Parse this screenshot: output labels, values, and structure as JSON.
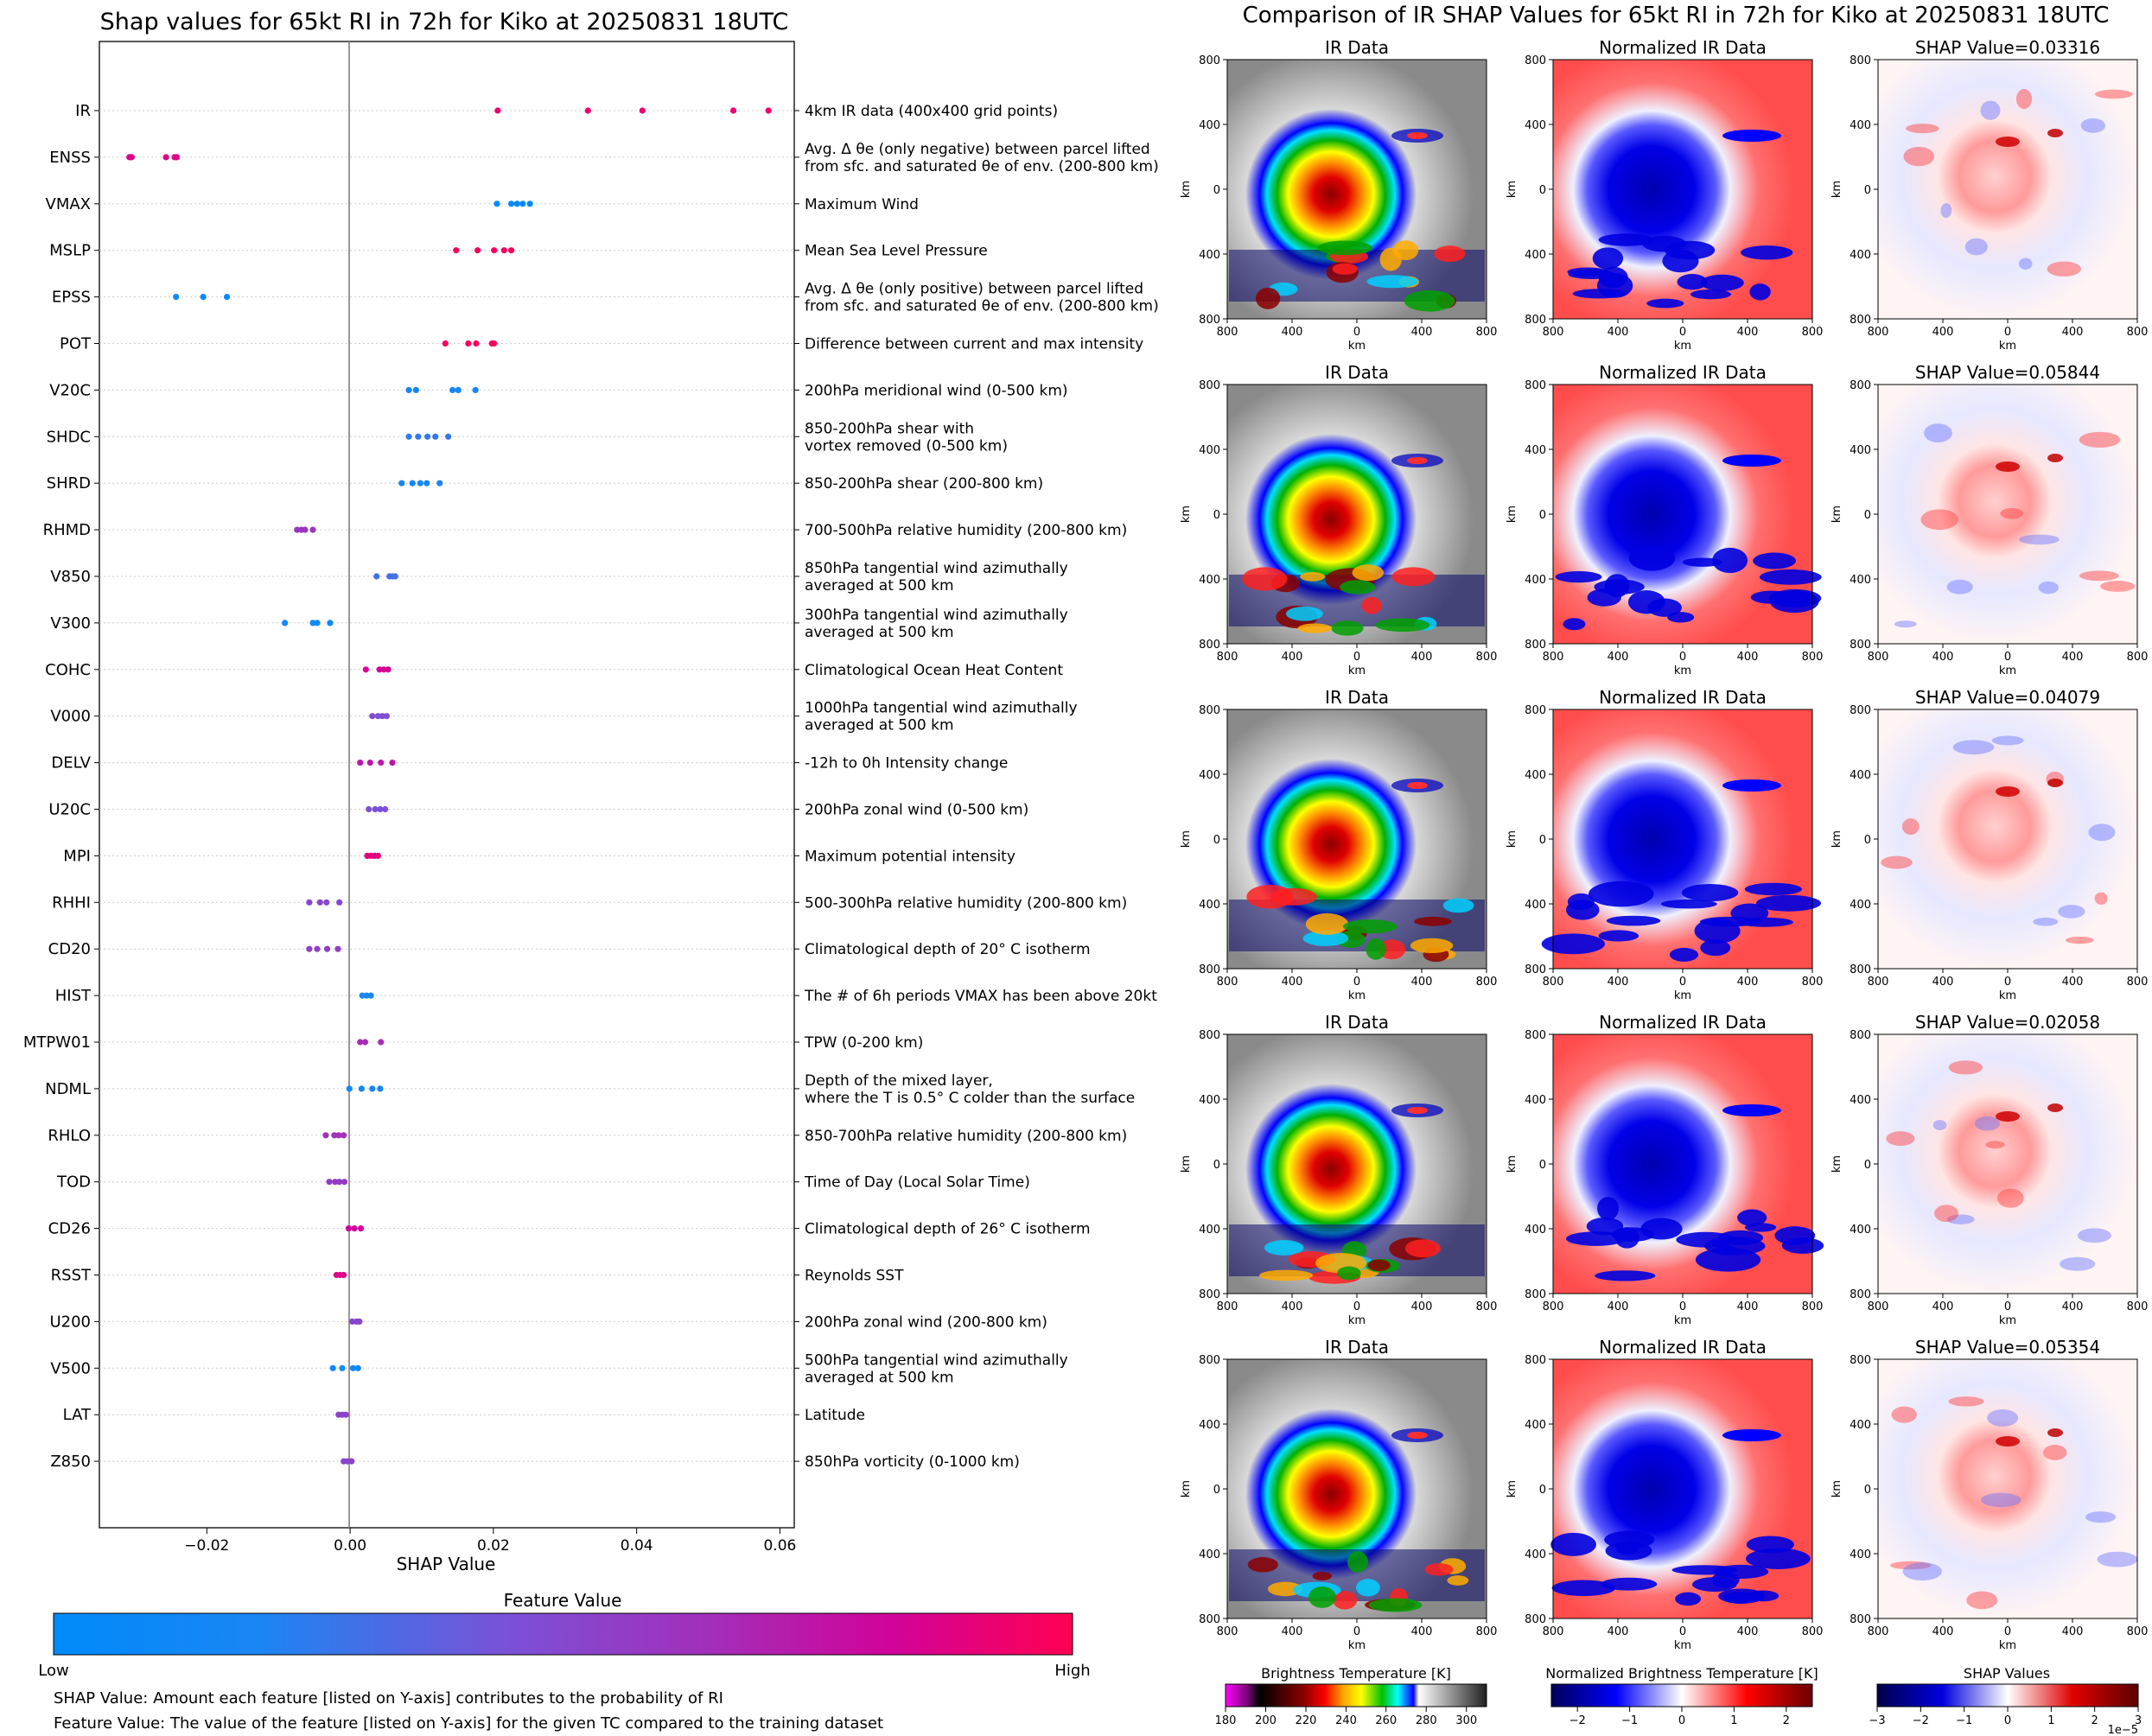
{
  "left_title": "Shap values for 65kt RI in 72h for Kiko at 20250831 18UTC",
  "right_title": "Comparison of IR SHAP Values for 65kt RI in 72h for Kiko at 20250831 18UTC",
  "colorbar": {
    "title": "Feature Value",
    "low": "Low",
    "high": "High",
    "colors": [
      "#008afb",
      "#1a86f3",
      "#7c50d6",
      "#a42db8",
      "#d1039a",
      "#ff0052"
    ]
  },
  "footnotes": [
    "SHAP Value: Amount each feature [listed on Y-axis] contributes to the probability of RI",
    "Feature Value: The value of the feature [listed on Y-axis] for the given TC compared to the training dataset"
  ],
  "panel_titles": [
    "IR Data",
    "Normalized IR Data"
  ],
  "shap_value_titles": [
    "SHAP Value=0.03316",
    "SHAP Value=0.05844",
    "SHAP Value=0.04079",
    "SHAP Value=0.02058",
    "SHAP Value=0.05354"
  ],
  "image_axis_label": "km",
  "image_x_ticks": [
    "800",
    "400",
    "0",
    "400",
    "800"
  ],
  "image_y_ticks": [
    "800",
    "400",
    "0",
    "400",
    "800"
  ],
  "bottom_colorbars": [
    {
      "label": "Brightness Temperature [K]",
      "ticks": [
        "180",
        "200",
        "220",
        "240",
        "260",
        "280",
        "300"
      ],
      "offset": ""
    },
    {
      "label": "Normalized Brightness Temperature [K]",
      "ticks": [
        "−2",
        "−1",
        "0",
        "1",
        "2"
      ],
      "offset": ""
    },
    {
      "label": "SHAP Values",
      "ticks": [
        "−3",
        "−2",
        "−1",
        "0",
        "1",
        "2",
        "3"
      ],
      "offset": "1e−5"
    }
  ],
  "chart_data": {
    "type": "scatter",
    "title": "Shap values for 65kt RI in 72h for Kiko at 20250831 18UTC",
    "xlabel": "SHAP Value",
    "xlim": [
      -0.035,
      0.062
    ],
    "x_ticks": [
      -0.02,
      0.0,
      0.02,
      0.04,
      0.06
    ],
    "x_tick_labels": [
      "−0.02",
      "0.00",
      "0.02",
      "0.04",
      "0.06"
    ],
    "grid": "horizontal dotted",
    "features": [
      {
        "name": "IR",
        "desc": [
          "4km IR data (400x400 grid points)"
        ],
        "points": [
          0.0206,
          0.0332,
          0.0408,
          0.0535,
          0.0584
        ],
        "feature_value": 0.92
      },
      {
        "name": "ENSS",
        "desc": [
          "Avg. Δ θe (only negative) between parcel lifted",
          "from sfc. and saturated θe of env. (200-800 km)"
        ],
        "points": [
          -0.0308,
          -0.0305,
          -0.0257,
          -0.0245,
          -0.0242
        ],
        "feature_value": 0.85
      },
      {
        "name": "VMAX",
        "desc": [
          "Maximum Wind"
        ],
        "points": [
          0.0205,
          0.0225,
          0.0233,
          0.0241,
          0.0251
        ],
        "feature_value": 0.04
      },
      {
        "name": "MSLP",
        "desc": [
          "Mean Sea Level Pressure"
        ],
        "points": [
          0.0148,
          0.0178,
          0.0201,
          0.0215,
          0.0225
        ],
        "feature_value": 0.97
      },
      {
        "name": "EPSS",
        "desc": [
          "Avg. Δ θe (only positive) between parcel lifted",
          "from sfc. and saturated θe of env. (200-800 km)"
        ],
        "points": [
          -0.0243,
          -0.0205,
          -0.0172
        ],
        "feature_value": 0.1
      },
      {
        "name": "POT",
        "desc": [
          "Difference between current and max intensity"
        ],
        "points": [
          0.0133,
          0.0165,
          0.0176,
          0.0198,
          0.0201
        ],
        "feature_value": 0.97
      },
      {
        "name": "V20C",
        "desc": [
          "200hPa meridional wind (0-500 km)"
        ],
        "points": [
          0.0082,
          0.0092,
          0.0143,
          0.0151,
          0.0175
        ],
        "feature_value": 0.18
      },
      {
        "name": "SHDC",
        "desc": [
          "850-200hPa shear with",
          "vortex removed (0-500 km)"
        ],
        "points": [
          0.0082,
          0.0095,
          0.0108,
          0.0119,
          0.0137
        ],
        "feature_value": 0.25
      },
      {
        "name": "SHRD",
        "desc": [
          "850-200hPa shear (200-800 km)"
        ],
        "points": [
          0.0072,
          0.0087,
          0.0098,
          0.0107,
          0.0125
        ],
        "feature_value": 0.18
      },
      {
        "name": "RHMD",
        "desc": [
          "700-500hPa relative humidity (200-800 km)"
        ],
        "points": [
          -0.0074,
          -0.0068,
          -0.0063,
          -0.0052
        ],
        "feature_value": 0.55
      },
      {
        "name": "V850",
        "desc": [
          "850hPa tangential wind azimuthally",
          "averaged at 500 km"
        ],
        "points": [
          0.0037,
          0.0055,
          0.0059,
          0.0063
        ],
        "feature_value": 0.28
      },
      {
        "name": "V300",
        "desc": [
          "300hPa tangential wind azimuthally",
          "averaged at 500 km"
        ],
        "points": [
          -0.0091,
          -0.0052,
          -0.0046,
          -0.0028
        ],
        "feature_value": 0.12
      },
      {
        "name": "COHC",
        "desc": [
          "Climatological Ocean Heat Content"
        ],
        "points": [
          0.0022,
          0.0041,
          0.0047,
          0.0053
        ],
        "feature_value": 0.82
      },
      {
        "name": "V000",
        "desc": [
          "1000hPa tangential wind azimuthally",
          "averaged at 500 km"
        ],
        "points": [
          0.0031,
          0.0039,
          0.0045,
          0.0051
        ],
        "feature_value": 0.42
      },
      {
        "name": "DELV",
        "desc": [
          "-12h to 0h Intensity change"
        ],
        "points": [
          0.0014,
          0.0028,
          0.0043,
          0.0059
        ],
        "feature_value": 0.7
      },
      {
        "name": "U20C",
        "desc": [
          "200hPa zonal wind (0-500 km)"
        ],
        "points": [
          0.0026,
          0.0035,
          0.0042,
          0.0049
        ],
        "feature_value": 0.4
      },
      {
        "name": "MPI",
        "desc": [
          "Maximum potential intensity"
        ],
        "points": [
          0.0024,
          0.0029,
          0.0034,
          0.0039
        ],
        "feature_value": 0.88
      },
      {
        "name": "RHHI",
        "desc": [
          "500-300hPa relative humidity (200-800 km)"
        ],
        "points": [
          -0.0057,
          -0.0042,
          -0.0033,
          -0.0015
        ],
        "feature_value": 0.45
      },
      {
        "name": "CD20",
        "desc": [
          "Climatological depth of 20° C isotherm"
        ],
        "points": [
          -0.0057,
          -0.0046,
          -0.0032,
          -0.0017
        ],
        "feature_value": 0.5
      },
      {
        "name": "HIST",
        "desc": [
          "The # of 6h periods VMAX has been above 20kt"
        ],
        "points": [
          0.0017,
          0.0023,
          0.0029
        ],
        "feature_value": 0.2
      },
      {
        "name": "MTPW01",
        "desc": [
          "TPW (0-200 km)"
        ],
        "points": [
          0.0014,
          0.0021,
          0.0043
        ],
        "feature_value": 0.62
      },
      {
        "name": "NDML",
        "desc": [
          "Depth of the mixed layer,",
          "where the T is 0.5° C colder than the surface"
        ],
        "points": [
          -0.0001,
          0.0016,
          0.0031,
          0.0042
        ],
        "feature_value": 0.15
      },
      {
        "name": "RHLO",
        "desc": [
          "850-700hPa relative humidity (200-800 km)"
        ],
        "points": [
          -0.0034,
          -0.0022,
          -0.0016,
          -0.0009
        ],
        "feature_value": 0.58
      },
      {
        "name": "TOD",
        "desc": [
          "Time of Day (Local Solar Time)"
        ],
        "points": [
          -0.0029,
          -0.0021,
          -0.0015,
          -0.0008
        ],
        "feature_value": 0.52
      },
      {
        "name": "CD26",
        "desc": [
          "Climatological depth of 26° C isotherm"
        ],
        "points": [
          -0.0002,
          0.0006,
          0.0015
        ],
        "feature_value": 0.8
      },
      {
        "name": "RSST",
        "desc": [
          "Reynolds SST"
        ],
        "points": [
          -0.0019,
          -0.0014,
          -0.0009
        ],
        "feature_value": 0.85
      },
      {
        "name": "U200",
        "desc": [
          "200hPa zonal wind (200-800 km)"
        ],
        "points": [
          0.0003,
          0.0009,
          0.0013
        ],
        "feature_value": 0.45
      },
      {
        "name": "V500",
        "desc": [
          "500hPa tangential wind azimuthally",
          "averaged at 500 km"
        ],
        "points": [
          -0.0024,
          -0.0011,
          0.0004,
          0.0011
        ],
        "feature_value": 0.12
      },
      {
        "name": "LAT",
        "desc": [
          "Latitude"
        ],
        "points": [
          -0.0016,
          -0.0011,
          -0.0006
        ],
        "feature_value": 0.48
      },
      {
        "name": "Z850",
        "desc": [
          "850hPa vorticity (0-1000 km)"
        ],
        "points": [
          -0.0009,
          -0.0004,
          0.0002
        ],
        "feature_value": 0.47
      }
    ]
  }
}
